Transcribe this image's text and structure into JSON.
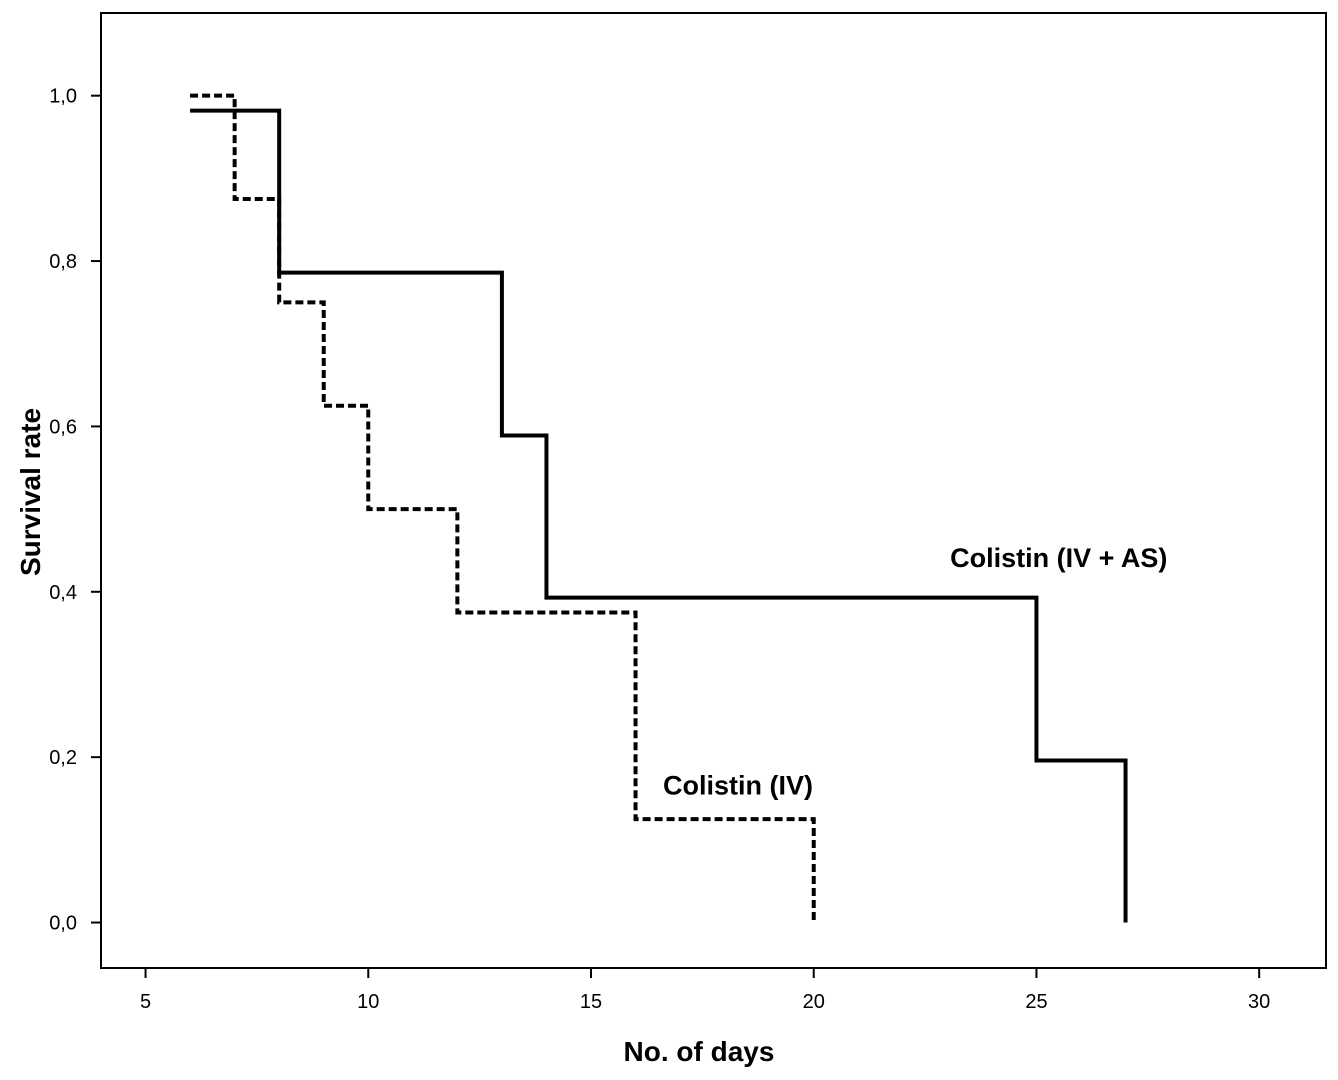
{
  "chart_data": {
    "type": "line",
    "subtype": "step",
    "title": "",
    "xlabel": "No. of days",
    "ylabel": "Survival rate",
    "xlim": [
      4,
      31.5
    ],
    "ylim": [
      -0.055,
      1.1
    ],
    "x_ticks": [
      5,
      10,
      15,
      20,
      25,
      30
    ],
    "x_tick_labels": [
      "5",
      "10",
      "15",
      "20",
      "25",
      "30"
    ],
    "y_ticks": [
      0.0,
      0.2,
      0.4,
      0.6,
      0.8,
      1.0
    ],
    "y_tick_labels": [
      "0,0",
      "0,2",
      "0,4",
      "0,6",
      "0,8",
      "1,0"
    ],
    "grid": false,
    "series": [
      {
        "label": "Colistin (IV + AS)",
        "line_style": "solid",
        "color": "#000000",
        "steps": [
          {
            "x": 6,
            "y": 0.982
          },
          {
            "x": 8,
            "y": 0.786
          },
          {
            "x": 13,
            "y": 0.589
          },
          {
            "x": 14,
            "y": 0.393
          },
          {
            "x": 25,
            "y": 0.196
          },
          {
            "x": 27,
            "y": 0.0
          }
        ]
      },
      {
        "label": "Colistin (IV)",
        "line_style": "dashed",
        "color": "#000000",
        "steps": [
          {
            "x": 6,
            "y": 1.0
          },
          {
            "x": 7,
            "y": 0.875
          },
          {
            "x": 8,
            "y": 0.75
          },
          {
            "x": 9,
            "y": 0.625
          },
          {
            "x": 10,
            "y": 0.5
          },
          {
            "x": 12,
            "y": 0.375
          },
          {
            "x": 16,
            "y": 0.125
          },
          {
            "x": 20,
            "y": 0.0
          }
        ]
      }
    ],
    "annotations": [
      {
        "text": "Colistin (IV + AS)",
        "x": 25.5,
        "y": 0.43
      },
      {
        "text": "Colistin (IV)",
        "x": 18.3,
        "y": 0.155
      }
    ]
  }
}
